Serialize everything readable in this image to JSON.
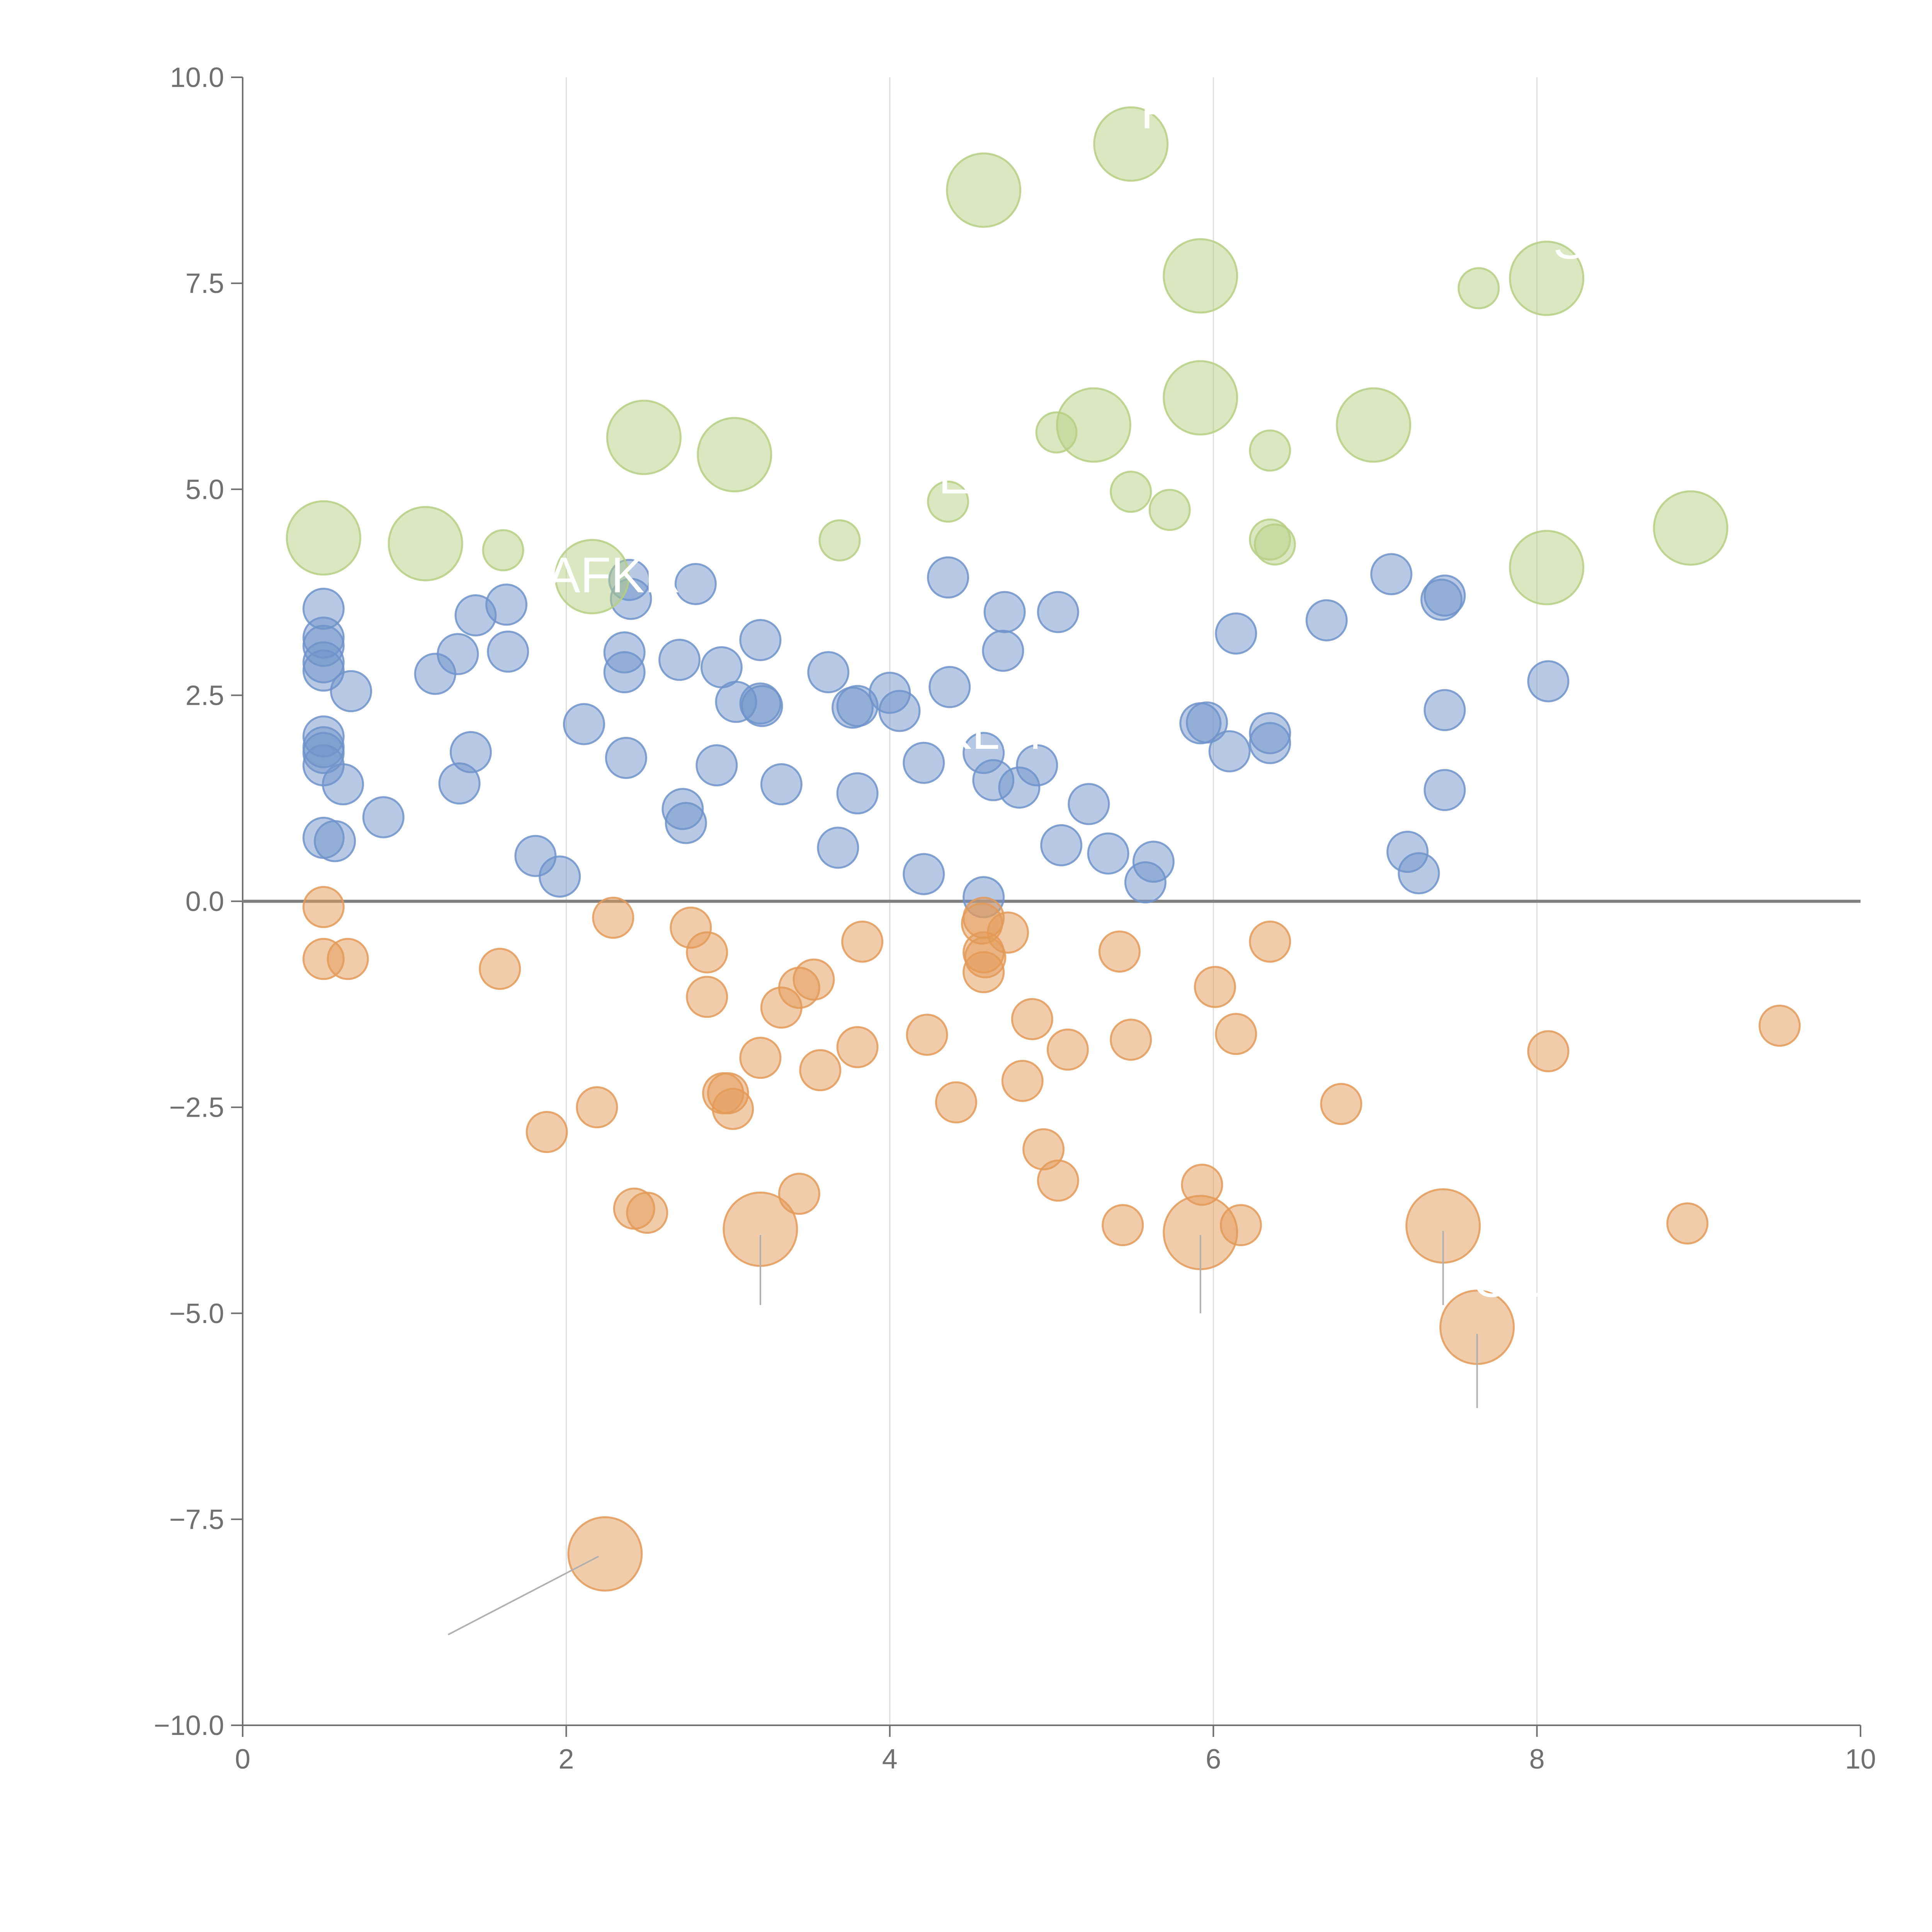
{
  "colors": {
    "background": "#ffffff",
    "axis": "#707070",
    "grid": "#dddddd",
    "zero_line": "#808080",
    "leader": "#b0b0b0",
    "label": "#ffffff"
  },
  "chart_data": {
    "type": "scatter",
    "title": "",
    "xlabel": "",
    "ylabel": "",
    "xlim": [
      0,
      10
    ],
    "ylim": [
      -10,
      10
    ],
    "x_ticks": [
      0,
      2,
      4,
      6,
      8,
      10
    ],
    "x_tick_labels": [
      "0",
      "2",
      "4",
      "6",
      "8",
      "10"
    ],
    "y_ticks": [
      10,
      7.5,
      5,
      2.5,
      0,
      -2.5,
      -5,
      -7.5,
      -10
    ],
    "y_tick_labels": [
      "10.0",
      "7.5",
      "5.0",
      "2.5",
      "0.0",
      "−2.5",
      "−5.0",
      "−7.5",
      "−10.0"
    ],
    "x_gridlines": [
      2,
      4,
      6,
      8
    ],
    "zero_line_y": 0,
    "series": [
      {
        "name": "blue",
        "color": "#6f93ca",
        "points": [
          [
            0.5,
            3.55,
            1
          ],
          [
            0.5,
            3.2,
            1
          ],
          [
            0.5,
            3.1,
            1
          ],
          [
            0.5,
            2.9,
            1
          ],
          [
            0.5,
            2.8,
            1
          ],
          [
            0.67,
            2.55,
            1
          ],
          [
            0.5,
            2.0,
            1
          ],
          [
            0.5,
            1.87,
            1
          ],
          [
            0.5,
            1.8,
            1
          ],
          [
            0.5,
            1.65,
            1
          ],
          [
            0.62,
            1.42,
            1
          ],
          [
            0.87,
            1.02,
            1
          ],
          [
            0.5,
            0.77,
            1
          ],
          [
            0.57,
            0.73,
            1
          ],
          [
            1.19,
            2.76,
            1
          ],
          [
            1.33,
            3.0,
            1
          ],
          [
            1.44,
            3.47,
            1
          ],
          [
            1.63,
            3.6,
            1
          ],
          [
            1.64,
            3.03,
            1
          ],
          [
            1.41,
            1.81,
            1
          ],
          [
            1.34,
            1.43,
            1
          ],
          [
            1.81,
            0.55,
            1
          ],
          [
            1.96,
            0.3,
            1
          ],
          [
            2.11,
            2.15,
            1
          ],
          [
            2.36,
            3.02,
            1
          ],
          [
            2.36,
            2.78,
            1
          ],
          [
            2.39,
            3.9,
            1
          ],
          [
            2.4,
            3.67,
            1
          ],
          [
            2.37,
            1.74,
            1
          ],
          [
            2.7,
            2.93,
            1
          ],
          [
            2.72,
            1.12,
            1
          ],
          [
            2.74,
            0.95,
            1
          ],
          [
            2.8,
            3.85,
            1
          ],
          [
            2.93,
            1.65,
            1
          ],
          [
            2.96,
            2.84,
            1
          ],
          [
            3.05,
            2.42,
            1
          ],
          [
            3.2,
            3.17,
            1
          ],
          [
            3.2,
            2.4,
            1
          ],
          [
            3.21,
            2.37,
            1
          ],
          [
            3.33,
            1.42,
            1
          ],
          [
            3.62,
            2.78,
            1
          ],
          [
            3.68,
            0.65,
            1
          ],
          [
            3.77,
            2.35,
            1
          ],
          [
            3.8,
            2.37,
            1
          ],
          [
            3.8,
            1.31,
            1
          ],
          [
            4.0,
            2.53,
            1
          ],
          [
            4.06,
            2.31,
            1
          ],
          [
            4.21,
            1.68,
            1
          ],
          [
            4.21,
            0.33,
            1
          ],
          [
            4.36,
            3.93,
            1
          ],
          [
            4.37,
            2.6,
            1
          ],
          [
            4.58,
            1.8,
            1
          ],
          [
            4.64,
            1.47,
            1
          ],
          [
            4.58,
            0.05,
            1
          ],
          [
            4.71,
            3.51,
            1
          ],
          [
            4.7,
            3.04,
            1
          ],
          [
            4.8,
            1.38,
            1
          ],
          [
            4.91,
            1.65,
            1
          ],
          [
            5.04,
            3.51,
            1
          ],
          [
            5.06,
            0.68,
            1
          ],
          [
            5.23,
            1.18,
            1
          ],
          [
            5.35,
            0.58,
            1
          ],
          [
            5.58,
            0.23,
            1
          ],
          [
            5.63,
            0.48,
            1
          ],
          [
            5.92,
            2.16,
            1
          ],
          [
            5.96,
            2.17,
            1
          ],
          [
            6.1,
            1.82,
            1
          ],
          [
            6.14,
            3.25,
            1
          ],
          [
            6.35,
            2.04,
            1
          ],
          [
            6.35,
            1.92,
            1
          ],
          [
            6.7,
            3.41,
            1
          ],
          [
            7.1,
            3.97,
            1
          ],
          [
            7.2,
            0.6,
            1
          ],
          [
            7.27,
            0.34,
            1
          ],
          [
            7.41,
            3.66,
            1
          ],
          [
            7.43,
            3.71,
            1
          ],
          [
            7.43,
            2.32,
            1
          ],
          [
            7.43,
            1.35,
            1
          ],
          [
            8.07,
            2.67,
            1
          ]
        ]
      },
      {
        "name": "orange",
        "color": "#e39a58",
        "points": [
          [
            0.5,
            -0.07,
            1
          ],
          [
            0.5,
            -0.7,
            1
          ],
          [
            0.65,
            -0.7,
            1
          ],
          [
            1.59,
            -0.82,
            1
          ],
          [
            1.88,
            -2.8,
            1
          ],
          [
            2.19,
            -2.5,
            1
          ],
          [
            2.29,
            -0.2,
            1
          ],
          [
            2.42,
            -3.73,
            1
          ],
          [
            2.5,
            -3.78,
            1
          ],
          [
            2.77,
            -0.32,
            1
          ],
          [
            2.87,
            -0.62,
            1
          ],
          [
            2.87,
            -1.16,
            1
          ],
          [
            2.97,
            -2.33,
            1
          ],
          [
            3.0,
            -2.33,
            1
          ],
          [
            3.03,
            -2.52,
            1
          ],
          [
            3.2,
            -1.9,
            1
          ],
          [
            3.33,
            -1.29,
            1
          ],
          [
            3.44,
            -1.05,
            1
          ],
          [
            3.53,
            -0.95,
            1
          ],
          [
            3.44,
            -3.55,
            1
          ],
          [
            3.57,
            -2.05,
            1
          ],
          [
            3.8,
            -1.77,
            1
          ],
          [
            3.83,
            -0.49,
            1
          ],
          [
            4.23,
            -1.62,
            1
          ],
          [
            4.41,
            -2.44,
            1
          ],
          [
            4.58,
            -0.2,
            1
          ],
          [
            4.57,
            -0.27,
            1
          ],
          [
            4.58,
            -0.62,
            1
          ],
          [
            4.59,
            -0.68,
            1
          ],
          [
            4.58,
            -0.86,
            1
          ],
          [
            4.73,
            -0.38,
            1
          ],
          [
            4.82,
            -2.18,
            1
          ],
          [
            4.88,
            -1.43,
            1
          ],
          [
            4.95,
            -3.01,
            1
          ],
          [
            5.04,
            -3.39,
            1
          ],
          [
            5.1,
            -1.8,
            1
          ],
          [
            5.42,
            -0.61,
            1
          ],
          [
            5.49,
            -1.68,
            1
          ],
          [
            5.44,
            -3.93,
            1
          ],
          [
            5.93,
            -3.44,
            1
          ],
          [
            6.01,
            -1.04,
            1
          ],
          [
            6.14,
            -1.61,
            1
          ],
          [
            6.17,
            -3.93,
            1
          ],
          [
            6.35,
            -0.49,
            1
          ],
          [
            6.79,
            -2.46,
            1
          ],
          [
            8.07,
            -1.82,
            1
          ],
          [
            8.93,
            -3.91,
            1
          ],
          [
            9.5,
            -1.51,
            1
          ],
          [
            3.2,
            -3.98,
            3
          ],
          [
            5.92,
            -4.02,
            3
          ],
          [
            7.42,
            -3.94,
            3
          ],
          [
            7.63,
            -5.17,
            3
          ],
          [
            2.24,
            -7.92,
            3
          ]
        ]
      },
      {
        "name": "green",
        "color": "#b5cf83",
        "points": [
          [
            1.61,
            4.26,
            1
          ],
          [
            3.69,
            4.38,
            1
          ],
          [
            4.36,
            4.85,
            1
          ],
          [
            5.03,
            5.69,
            1
          ],
          [
            5.49,
            4.97,
            1
          ],
          [
            5.73,
            4.75,
            1
          ],
          [
            6.35,
            5.47,
            1
          ],
          [
            6.35,
            4.39,
            1
          ],
          [
            6.38,
            4.33,
            1
          ],
          [
            7.64,
            7.44,
            1
          ],
          [
            0.5,
            4.41,
            3
          ],
          [
            1.13,
            4.34,
            3
          ],
          [
            2.16,
            3.94,
            3
          ],
          [
            2.48,
            5.63,
            3
          ],
          [
            3.04,
            5.42,
            3
          ],
          [
            4.58,
            8.63,
            3
          ],
          [
            5.26,
            5.78,
            3
          ],
          [
            5.49,
            9.19,
            3
          ],
          [
            5.92,
            7.59,
            3
          ],
          [
            5.92,
            6.11,
            3
          ],
          [
            6.99,
            5.78,
            3
          ],
          [
            8.06,
            7.56,
            3
          ],
          [
            8.06,
            4.05,
            3
          ],
          [
            8.95,
            4.53,
            3
          ]
        ]
      }
    ],
    "annotations": [
      {
        "text": "AFKR",
        "x": 1.88,
        "y": 3.75
      },
      {
        "text": "FU",
        "x": 5.55,
        "y": 9.38
      },
      {
        "text": "SH",
        "x": 8.1,
        "y": 7.8
      },
      {
        "text": "ELM",
        "x": 4.3,
        "y": 4.95
      },
      {
        "text": "KLM",
        "x": 4.3,
        "y": 1.85
      },
      {
        "text": "OL",
        "x": 7.6,
        "y": -4.8
      }
    ],
    "leader_lines": [
      [
        3.2,
        -4.05,
        3.2,
        -4.9
      ],
      [
        5.92,
        -4.05,
        5.92,
        -5.0
      ],
      [
        7.42,
        -4.0,
        7.42,
        -4.9
      ],
      [
        7.63,
        -5.25,
        7.63,
        -6.15
      ],
      [
        2.2,
        -7.95,
        1.27,
        -8.9
      ]
    ]
  }
}
